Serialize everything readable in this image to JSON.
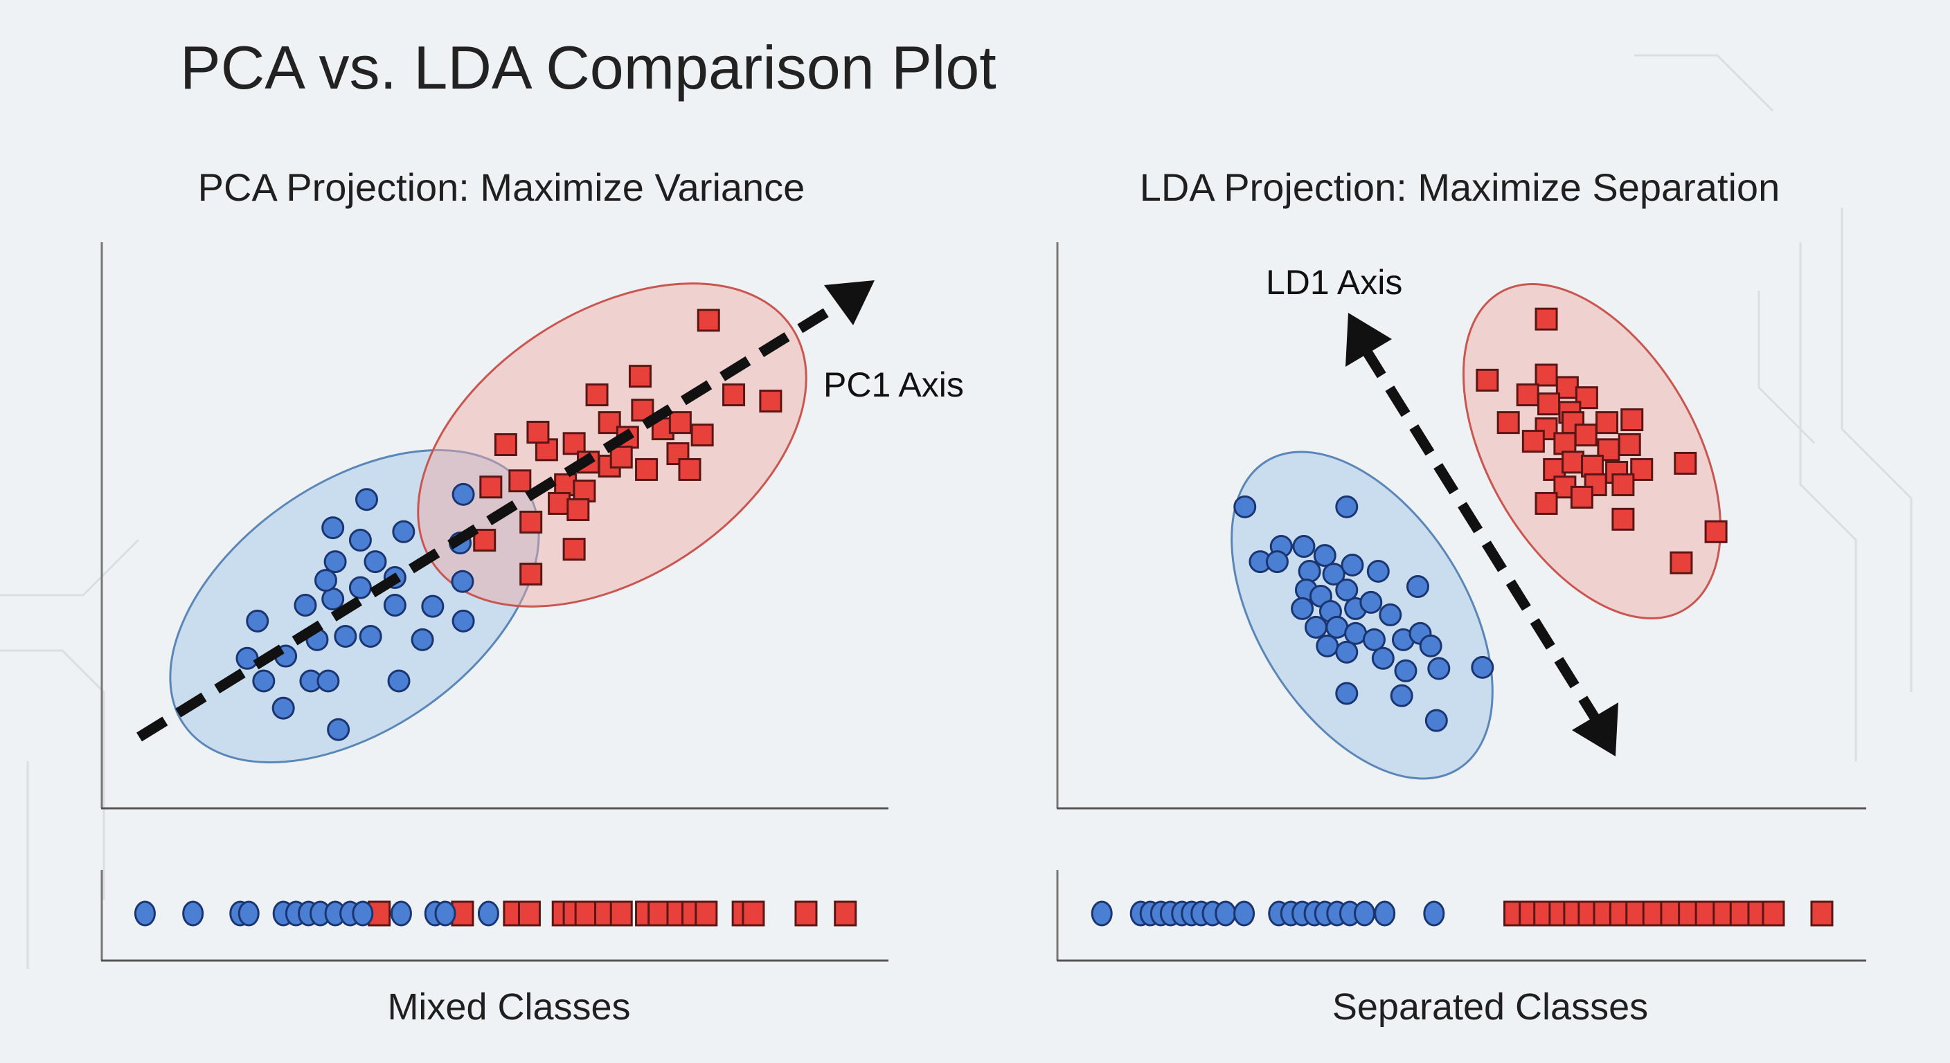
{
  "title": "PCA vs. LDA Comparison Plot",
  "colors": {
    "class_a": "#4a7fd4",
    "class_b": "#e8413c",
    "background": "#eef2f5"
  },
  "chart_data": [
    {
      "type": "scatter",
      "title": "PCA Projection: Maximize Variance",
      "axis_label": "PC1 Axis",
      "xlim": [
        0,
        100
      ],
      "ylim": [
        0,
        100
      ],
      "grid": false,
      "series": [
        {
          "marker": "circle",
          "color": "#4a7fd4",
          "points": [
            [
              33.7,
              54.5
            ],
            [
              29.4,
              49.5
            ],
            [
              32.9,
              47.3
            ],
            [
              38.4,
              48.8
            ],
            [
              29.7,
              43.5
            ],
            [
              34.8,
              43.5
            ],
            [
              25.9,
              35.8
            ],
            [
              29.4,
              36.9
            ],
            [
              32.9,
              38.9
            ],
            [
              37.3,
              35.8
            ],
            [
              42.1,
              35.6
            ],
            [
              19.8,
              33.0
            ],
            [
              27.4,
              29.7
            ],
            [
              31.0,
              30.3
            ],
            [
              34.2,
              30.3
            ],
            [
              40.8,
              29.7
            ],
            [
              46.0,
              33.0
            ],
            [
              23.4,
              26.8
            ],
            [
              18.5,
              26.4
            ],
            [
              20.6,
              22.4
            ],
            [
              26.6,
              22.4
            ],
            [
              28.8,
              22.4
            ],
            [
              37.8,
              22.4
            ],
            [
              23.1,
              17.6
            ],
            [
              30.1,
              13.8
            ],
            [
              37.3,
              40.7
            ],
            [
              28.5,
              40.2
            ],
            [
              46.0,
              55.4
            ],
            [
              45.6,
              46.8
            ],
            [
              45.9,
              40.0
            ]
          ]
        },
        {
          "marker": "square",
          "color": "#e8413c",
          "points": [
            [
              68.5,
              76.3
            ],
            [
              63.0,
              73.0
            ],
            [
              64.6,
              68.1
            ],
            [
              68.8,
              70.3
            ],
            [
              71.4,
              67.0
            ],
            [
              66.9,
              65.5
            ],
            [
              73.6,
              68.1
            ],
            [
              80.4,
              73.0
            ],
            [
              85.1,
              71.9
            ],
            [
              76.4,
              65.9
            ],
            [
              51.4,
              64.2
            ],
            [
              56.6,
              63.3
            ],
            [
              60.1,
              64.4
            ],
            [
              61.9,
              61.1
            ],
            [
              64.6,
              60.4
            ],
            [
              69.3,
              59.8
            ],
            [
              73.3,
              62.6
            ],
            [
              74.8,
              59.8
            ],
            [
              55.5,
              66.4
            ],
            [
              49.5,
              56.7
            ],
            [
              53.2,
              57.8
            ],
            [
              59.0,
              57.1
            ],
            [
              61.4,
              56.0
            ],
            [
              58.2,
              53.8
            ],
            [
              60.6,
              52.7
            ],
            [
              48.7,
              47.3
            ],
            [
              54.6,
              50.5
            ],
            [
              60.1,
              45.7
            ],
            [
              54.6,
              41.3
            ],
            [
              77.2,
              86.2
            ],
            [
              66.1,
              62.0
            ]
          ]
        }
      ],
      "projection": {
        "label": "Mixed Classes",
        "class_a": [
          5.5,
          11.6,
          17.6,
          18.7,
          23.1,
          24.7,
          26.3,
          27.8,
          29.7,
          31.6,
          33.2,
          38.1,
          42.4,
          43.7,
          49.2
        ],
        "class_b": [
          35.3,
          45.9,
          52.5,
          54.4,
          58.7,
          60.1,
          61.6,
          64.1,
          66.1,
          69.3,
          70.9,
          73.3,
          75.2,
          76.9,
          81.6,
          82.9,
          89.6,
          94.6
        ]
      }
    },
    {
      "type": "scatter",
      "title": "LDA Projection: Maximize Separation",
      "axis_label": "LD1 Axis",
      "xlim": [
        0,
        100
      ],
      "ylim": [
        0,
        100
      ],
      "grid": false,
      "series": [
        {
          "marker": "circle",
          "color": "#4a7fd4",
          "points": [
            [
              23.2,
              53.2
            ],
            [
              35.8,
              53.2
            ],
            [
              27.7,
              46.2
            ],
            [
              30.5,
              46.2
            ],
            [
              33.1,
              44.6
            ],
            [
              25.1,
              43.5
            ],
            [
              27.2,
              43.5
            ],
            [
              31.2,
              41.8
            ],
            [
              34.2,
              41.3
            ],
            [
              36.5,
              42.9
            ],
            [
              39.7,
              41.8
            ],
            [
              44.6,
              39.1
            ],
            [
              30.8,
              38.5
            ],
            [
              32.6,
              37.4
            ],
            [
              35.8,
              38.5
            ],
            [
              30.3,
              35.2
            ],
            [
              33.8,
              34.7
            ],
            [
              36.9,
              35.2
            ],
            [
              38.8,
              36.3
            ],
            [
              41.2,
              34.1
            ],
            [
              32.0,
              31.9
            ],
            [
              34.6,
              31.9
            ],
            [
              36.9,
              30.8
            ],
            [
              39.2,
              29.7
            ],
            [
              42.8,
              29.7
            ],
            [
              44.9,
              30.8
            ],
            [
              46.2,
              28.6
            ],
            [
              33.4,
              28.6
            ],
            [
              35.8,
              27.5
            ],
            [
              40.3,
              26.4
            ],
            [
              43.1,
              24.2
            ],
            [
              47.2,
              24.6
            ],
            [
              52.6,
              24.8
            ],
            [
              35.8,
              20.2
            ],
            [
              42.6,
              19.8
            ],
            [
              46.9,
              15.4
            ]
          ]
        },
        {
          "marker": "square",
          "color": "#e8413c",
          "points": [
            [
              60.5,
              86.4
            ],
            [
              53.2,
              75.6
            ],
            [
              60.5,
              76.5
            ],
            [
              63.1,
              74.3
            ],
            [
              58.2,
              73.0
            ],
            [
              65.5,
              72.5
            ],
            [
              55.8,
              68.1
            ],
            [
              60.8,
              71.4
            ],
            [
              63.4,
              69.9
            ],
            [
              60.5,
              67.0
            ],
            [
              63.8,
              68.1
            ],
            [
              68.0,
              68.1
            ],
            [
              71.1,
              68.6
            ],
            [
              58.9,
              64.8
            ],
            [
              62.8,
              64.4
            ],
            [
              65.4,
              65.9
            ],
            [
              68.2,
              63.3
            ],
            [
              70.8,
              64.2
            ],
            [
              61.5,
              59.8
            ],
            [
              63.8,
              61.1
            ],
            [
              66.2,
              60.4
            ],
            [
              69.2,
              59.3
            ],
            [
              72.3,
              59.8
            ],
            [
              77.7,
              60.9
            ],
            [
              62.8,
              56.7
            ],
            [
              66.6,
              57.1
            ],
            [
              70.0,
              57.1
            ],
            [
              64.9,
              54.9
            ],
            [
              60.5,
              53.8
            ],
            [
              70.0,
              51.0
            ],
            [
              81.5,
              48.8
            ],
            [
              77.2,
              43.3
            ]
          ]
        }
      ],
      "projection": {
        "label": "Separated Classes",
        "class_a": [
          5.5,
          10.3,
          11.5,
          12.8,
          14.0,
          15.4,
          16.6,
          17.8,
          19.2,
          20.8,
          23.1,
          27.4,
          28.9,
          30.3,
          31.8,
          33.1,
          34.6,
          36.2,
          38.0,
          40.5,
          46.6
        ],
        "class_b": [
          56.6,
          58.5,
          60.3,
          62.2,
          64.0,
          65.8,
          67.7,
          69.7,
          71.7,
          73.8,
          76.0,
          78.2,
          80.3,
          82.5,
          84.6,
          86.8,
          88.6,
          94.6
        ]
      }
    }
  ]
}
